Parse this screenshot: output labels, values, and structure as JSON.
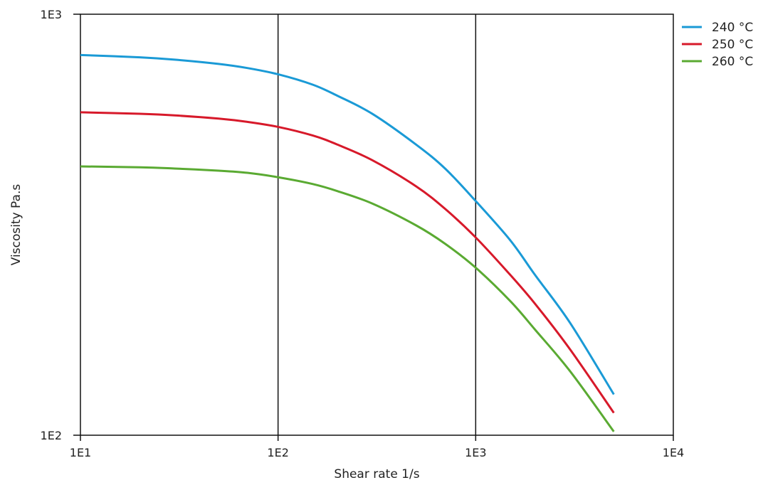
{
  "chart_data": {
    "type": "line",
    "title": "",
    "xlabel": "Shear rate  1/s",
    "ylabel": "Viscosity  Pa.s",
    "xscale": "log",
    "yscale": "log",
    "xlim": [
      10,
      10000
    ],
    "ylim": [
      100,
      1000
    ],
    "xticks": [
      10,
      100,
      1000,
      10000
    ],
    "xtick_labels": [
      "1E1",
      "1E2",
      "1E3",
      "1E4"
    ],
    "yticks": [
      100,
      1000
    ],
    "ytick_labels": [
      "1E2",
      "1E3"
    ],
    "grid": "vertical",
    "legend_position": "top-right",
    "x": [
      10,
      20,
      30,
      50,
      70,
      100,
      150,
      200,
      300,
      500,
      700,
      1000,
      1500,
      2000,
      3000,
      5000
    ],
    "series": [
      {
        "name": "240 °C",
        "color": "#1a9ad6",
        "values": [
          800,
          790,
          780,
          762,
          745,
          720,
          680,
          640,
          580,
          490,
          430,
          360,
          290,
          240,
          185,
          125
        ]
      },
      {
        "name": "250 °C",
        "color": "#d7192a",
        "values": [
          585,
          580,
          575,
          565,
          555,
          540,
          515,
          490,
          450,
          390,
          345,
          295,
          240,
          205,
          160,
          113
        ]
      },
      {
        "name": "260 °C",
        "color": "#5aaa32",
        "values": [
          435,
          433,
          430,
          425,
          420,
          410,
          395,
          380,
          355,
          315,
          285,
          250,
          208,
          178,
          142,
          102
        ]
      }
    ]
  }
}
